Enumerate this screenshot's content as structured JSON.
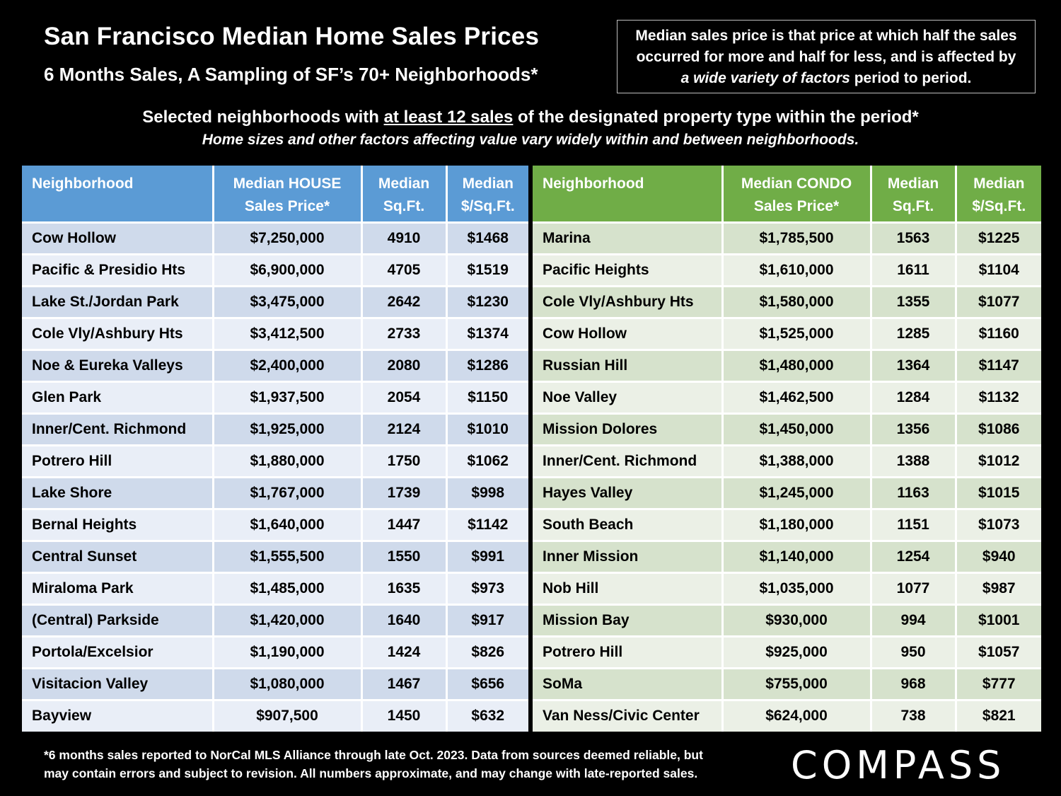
{
  "header": {
    "title": "San Francisco Median Home Sales Prices",
    "subtitle": "6 Months Sales, A Sampling of SF’s 70+ Neighborhoods*",
    "note_line1": "Median sales price is that price at which half the sales",
    "note_line2": "occurred for more and half for less, and is affected by",
    "note_italic": "a wide variety of factors",
    "note_end": " period to period.",
    "criteria_pre": "Selected neighborhoods with ",
    "criteria_underlined": "at least 12 sales",
    "criteria_post": " of the designated property type within the period*",
    "caveat": "Home sizes and other factors affecting value vary widely within and between neighborhoods."
  },
  "house_table": {
    "columns": [
      "Neighborhood",
      "Median HOUSE Sales Price*",
      "Median Sq.Ft.",
      "Median $/Sq.Ft."
    ],
    "column_lines": [
      [
        "Neighborhood"
      ],
      [
        "Median HOUSE",
        "Sales Price*"
      ],
      [
        "Median",
        "Sq.Ft."
      ],
      [
        "Median",
        "$/Sq.Ft."
      ]
    ],
    "rows": [
      [
        "Cow Hollow",
        "$7,250,000",
        "4910",
        "$1468"
      ],
      [
        "Pacific & Presidio Hts",
        "$6,900,000",
        "4705",
        "$1519"
      ],
      [
        "Lake St./Jordan Park",
        "$3,475,000",
        "2642",
        "$1230"
      ],
      [
        "Cole Vly/Ashbury Hts",
        "$3,412,500",
        "2733",
        "$1374"
      ],
      [
        "Noe & Eureka Valleys",
        "$2,400,000",
        "2080",
        "$1286"
      ],
      [
        "Glen Park",
        "$1,937,500",
        "2054",
        "$1150"
      ],
      [
        "Inner/Cent. Richmond",
        "$1,925,000",
        "2124",
        "$1010"
      ],
      [
        "Potrero Hill",
        "$1,880,000",
        "1750",
        "$1062"
      ],
      [
        "Lake Shore",
        "$1,767,000",
        "1739",
        "$998"
      ],
      [
        "Bernal Heights",
        "$1,640,000",
        "1447",
        "$1142"
      ],
      [
        "Central Sunset",
        "$1,555,500",
        "1550",
        "$991"
      ],
      [
        "Miraloma Park",
        "$1,485,000",
        "1635",
        "$973"
      ],
      [
        "(Central) Parkside",
        "$1,420,000",
        "1640",
        "$917"
      ],
      [
        "Portola/Excelsior",
        "$1,190,000",
        "1424",
        "$826"
      ],
      [
        "Visitacion Valley",
        "$1,080,000",
        "1467",
        "$656"
      ],
      [
        "Bayview",
        "$907,500",
        "1450",
        "$632"
      ]
    ]
  },
  "condo_table": {
    "columns": [
      "Neighborhood",
      "Median CONDO Sales Price*",
      "Median Sq.Ft.",
      "Median $/Sq.Ft."
    ],
    "column_lines": [
      [
        "Neighborhood"
      ],
      [
        "Median CONDO",
        "Sales Price*"
      ],
      [
        "Median",
        "Sq.Ft."
      ],
      [
        "Median",
        "$/Sq.Ft."
      ]
    ],
    "rows": [
      [
        "Marina",
        "$1,785,500",
        "1563",
        "$1225"
      ],
      [
        "Pacific Heights",
        "$1,610,000",
        "1611",
        "$1104"
      ],
      [
        "Cole Vly/Ashbury Hts",
        "$1,580,000",
        "1355",
        "$1077"
      ],
      [
        "Cow Hollow",
        "$1,525,000",
        "1285",
        "$1160"
      ],
      [
        "Russian Hill",
        "$1,480,000",
        "1364",
        "$1147"
      ],
      [
        "Noe Valley",
        "$1,462,500",
        "1284",
        "$1132"
      ],
      [
        "Mission Dolores",
        "$1,450,000",
        "1356",
        "$1086"
      ],
      [
        "Inner/Cent. Richmond",
        "$1,388,000",
        "1388",
        "$1012"
      ],
      [
        "Hayes Valley",
        "$1,245,000",
        "1163",
        "$1015"
      ],
      [
        "South Beach",
        "$1,180,000",
        "1151",
        "$1073"
      ],
      [
        "Inner Mission",
        "$1,140,000",
        "1254",
        "$940"
      ],
      [
        "Nob Hill",
        "$1,035,000",
        "1077",
        "$987"
      ],
      [
        "Mission Bay",
        "$930,000",
        "994",
        "$1001"
      ],
      [
        "Potrero Hill",
        "$925,000",
        "950",
        "$1057"
      ],
      [
        "SoMa",
        "$755,000",
        "968",
        "$777"
      ],
      [
        "Van Ness/Civic Center",
        "$624,000",
        "738",
        "$821"
      ]
    ]
  },
  "footer": {
    "footnote_line1": "*6 months sales reported to NorCal MLS Alliance through late Oct. 2023. Data from sources deemed reliable, but",
    "footnote_line2": "may contain errors and subject to revision. All numbers approximate, and may change with late-reported sales.",
    "logo": "COMPASS"
  },
  "colors": {
    "background": "#000000",
    "house_header": "#5b9bd5",
    "condo_header": "#70ad47",
    "house_row_dark": "#cfdaeb",
    "house_row_light": "#e9eef7",
    "condo_row_dark": "#d6e2cc",
    "condo_row_light": "#ebf0e6"
  }
}
